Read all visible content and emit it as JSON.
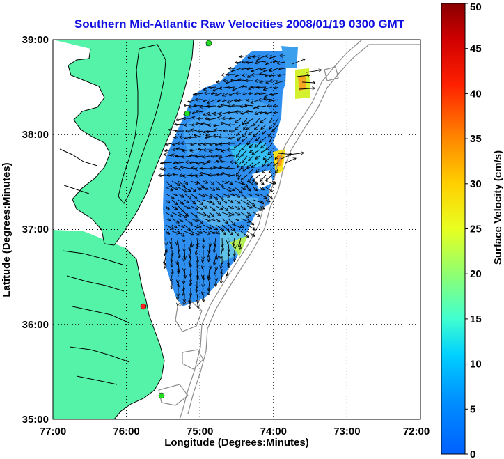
{
  "title": "Southern Mid-Atlantic Raw Velocities 2008/01/19 0300 GMT",
  "x_axis": {
    "label": "Longitude (Degrees:Minutes)",
    "ticks": [
      "77:00",
      "76:00",
      "75:00",
      "74:00",
      "73:00",
      "72:00"
    ],
    "range_deg_west": [
      77,
      72
    ]
  },
  "y_axis": {
    "label": "Latitude (Degrees:Minutes)",
    "ticks": [
      "39:00",
      "38:00",
      "37:00",
      "36:00",
      "35:00"
    ],
    "range_deg_north": [
      35,
      39
    ]
  },
  "colorbar": {
    "label": "Surface Velocity (cm/s)",
    "ticks": [
      "50",
      "45",
      "40",
      "35",
      "30",
      "25",
      "20",
      "15",
      "10",
      "5",
      "0"
    ],
    "range": [
      0,
      50
    ],
    "colormap": "jet"
  },
  "colors": {
    "land": "#55f3a8",
    "water": "#ffffff",
    "bathymetry": "#8c8c8c",
    "title": "#1010e0",
    "station_green": "#22dd22",
    "station_red": "#ff2020"
  },
  "stations": [
    {
      "name": "north-station",
      "status": "green"
    },
    {
      "name": "mid-station",
      "status": "green"
    },
    {
      "name": "south-station",
      "status": "red"
    },
    {
      "name": "hatteras-station",
      "status": "green"
    }
  ],
  "grid": "dotted"
}
